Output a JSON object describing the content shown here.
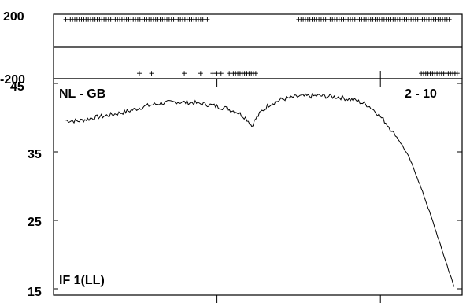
{
  "chart_data": [
    {
      "type": "scatter",
      "panel": "phase",
      "title": "",
      "xlabel": "",
      "ylabel": "",
      "ylim": [
        -200,
        200
      ],
      "y_tick_labels": [
        "200",
        "-200"
      ],
      "grid": false,
      "marker": "+",
      "series": [
        {
          "x_ranges": [
            [
              0.03,
              0.38
            ],
            [
              0.6,
              0.97
            ]
          ],
          "y": 185
        },
        {
          "x": [
            0.21,
            0.24,
            0.32,
            0.36,
            0.39,
            0.4,
            0.41,
            0.43
          ],
          "y": -185
        },
        {
          "x_ranges": [
            [
              0.44,
              0.5
            ],
            [
              0.9,
              0.99
            ]
          ],
          "y": -185
        }
      ]
    },
    {
      "type": "line",
      "panel": "amplitude",
      "title": "",
      "xlabel": "",
      "ylabel": "",
      "ylim": [
        15,
        45
      ],
      "y_ticks": [
        15,
        25,
        35,
        45
      ],
      "y_tick_labels": [
        "15",
        "25",
        "35",
        "45"
      ],
      "grid": false,
      "annotations": {
        "baseline": "NL - GB",
        "channel": "2 - 10",
        "if_label": "IF 1(LL)"
      },
      "series": [
        {
          "points": [
            [
              0.03,
              39.6
            ],
            [
              0.06,
              39.5
            ],
            [
              0.1,
              40.0
            ],
            [
              0.14,
              40.4
            ],
            [
              0.18,
              40.9
            ],
            [
              0.22,
              41.6
            ],
            [
              0.26,
              42.1
            ],
            [
              0.3,
              42.3
            ],
            [
              0.34,
              42.2
            ],
            [
              0.38,
              41.9
            ],
            [
              0.42,
              41.4
            ],
            [
              0.45,
              40.8
            ],
            [
              0.47,
              40.0
            ],
            [
              0.48,
              39.3
            ],
            [
              0.485,
              38.8
            ],
            [
              0.495,
              39.8
            ],
            [
              0.51,
              41.0
            ],
            [
              0.53,
              42.0
            ],
            [
              0.56,
              42.7
            ],
            [
              0.6,
              43.1
            ],
            [
              0.65,
              43.2
            ],
            [
              0.7,
              43.0
            ],
            [
              0.74,
              42.5
            ],
            [
              0.77,
              41.8
            ],
            [
              0.79,
              40.8
            ],
            [
              0.81,
              39.5
            ],
            [
              0.83,
              38.0
            ],
            [
              0.85,
              36.3
            ],
            [
              0.87,
              34.2
            ],
            [
              0.89,
              31.3
            ],
            [
              0.91,
              28.0
            ],
            [
              0.93,
              24.5
            ],
            [
              0.95,
              20.8
            ],
            [
              0.97,
              17.2
            ],
            [
              0.98,
              15.3
            ]
          ]
        }
      ]
    }
  ]
}
